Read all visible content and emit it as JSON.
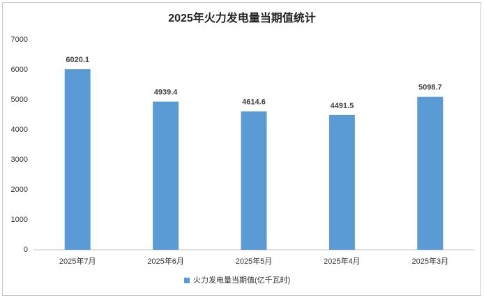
{
  "chart_data": {
    "type": "bar",
    "title": "2025年火力发电量当期值统计",
    "categories": [
      "2025年7月",
      "2025年6月",
      "2025年5月",
      "2025年4月",
      "2025年3月"
    ],
    "series": [
      {
        "name": "火力发电量当期值(亿千瓦时)",
        "color": "#5b9bd5",
        "values": [
          6020.1,
          4939.4,
          4614.6,
          4491.5,
          5098.7
        ]
      }
    ],
    "ylim": [
      0,
      7000
    ],
    "yticks": [
      0,
      1000,
      2000,
      3000,
      4000,
      5000,
      6000,
      7000
    ],
    "grid": false,
    "legend": "bottom"
  }
}
